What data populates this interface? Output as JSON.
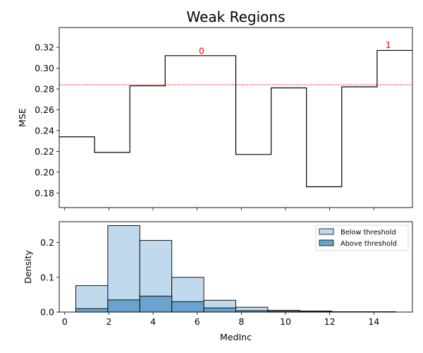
{
  "chart_data": [
    {
      "type": "line",
      "title": "Weak Regions",
      "xlabel": "",
      "ylabel": "MSE",
      "xlim": [
        -0.25,
        15.75
      ],
      "ylim": [
        0.166,
        0.339
      ],
      "yticks": [
        0.18,
        0.2,
        0.22,
        0.24,
        0.26,
        0.28,
        0.3,
        0.32
      ],
      "ytick_labels": [
        "0.18",
        "0.20",
        "0.22",
        "0.24",
        "0.26",
        "0.28",
        "0.30",
        "0.32"
      ],
      "xticks": [
        0,
        2,
        4,
        6,
        8,
        10,
        12,
        14
      ],
      "series": [
        {
          "step": "post",
          "x": [
            -0.25,
            1.35,
            2.95,
            4.55,
            6.15,
            7.75,
            9.35,
            10.95,
            12.55,
            14.15,
            15.75
          ],
          "y": [
            0.234,
            0.219,
            0.283,
            0.312,
            0.312,
            0.217,
            0.281,
            0.186,
            0.282,
            0.317,
            0.317
          ]
        }
      ],
      "threshold": 0.284,
      "colors": {
        "line": "#000000",
        "threshold": "#ff0000",
        "annotation": "#ff0000"
      },
      "annotations": [
        {
          "text": "0",
          "x": 6.2,
          "y": 0.3135
        },
        {
          "text": "1",
          "x": 14.65,
          "y": 0.3192
        }
      ]
    },
    {
      "type": "bar",
      "xlabel": "MedInc",
      "ylabel": "Density",
      "xlim": [
        -0.25,
        15.75
      ],
      "ylim": [
        0,
        0.26
      ],
      "yticks": [
        0.0,
        0.1,
        0.2
      ],
      "ytick_labels": [
        "0.0",
        "0.1",
        "0.2"
      ],
      "xticks": [
        0,
        2,
        4,
        6,
        8,
        10,
        12,
        14
      ],
      "xtick_labels": [
        "0",
        "2",
        "4",
        "6",
        "8",
        "10",
        "12",
        "14"
      ],
      "bin_edges": [
        0.5,
        1.95,
        3.4,
        4.85,
        6.3,
        7.75,
        9.2,
        10.65,
        12.1,
        13.55,
        15.0
      ],
      "series": [
        {
          "name": "Below threshold",
          "color": "#c0d9ec",
          "values": [
            0.076,
            0.249,
            0.206,
            0.1,
            0.034,
            0.014,
            0.005,
            0.003,
            0.001,
            0.001
          ]
        },
        {
          "name": "Above threshold",
          "color": "#6aa3cd",
          "values": [
            0.01,
            0.035,
            0.046,
            0.03,
            0.012,
            0.004,
            0.002,
            0.001,
            0.0005,
            0.0005
          ]
        }
      ],
      "legend_position": "top-right"
    }
  ]
}
